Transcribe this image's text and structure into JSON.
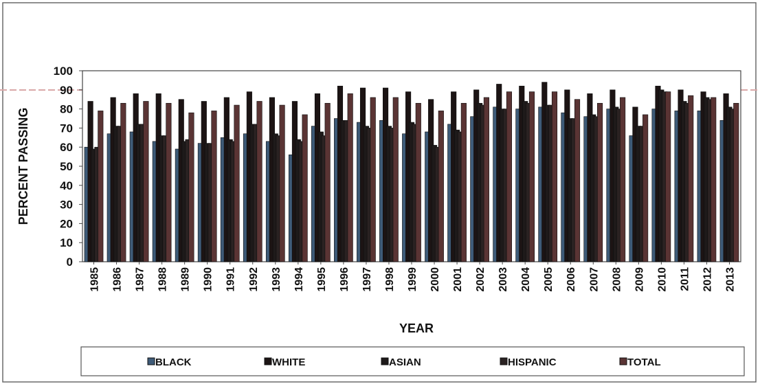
{
  "colors": {
    "BLACK": "#3e5b78",
    "WHITE": "#1c1414",
    "ASIAN": "#1e1a1a",
    "HISPANIC": "#2a2222",
    "TOTAL": "#5a3434",
    "frame": "#6a6a6a",
    "reference_line": "#d9a8a8"
  },
  "chart_data": {
    "type": "bar",
    "title": "",
    "xlabel": "YEAR",
    "ylabel": "PERCENT PASSING",
    "ylim": [
      0,
      100
    ],
    "yticks": [
      0,
      10,
      20,
      30,
      40,
      50,
      60,
      70,
      80,
      90,
      100
    ],
    "grid": false,
    "legend_position": "bottom",
    "categories": [
      "1985",
      "1986",
      "1987",
      "1988",
      "1989",
      "1990",
      "1991",
      "1992",
      "1993",
      "1994",
      "1995",
      "1996",
      "1997",
      "1998",
      "1999",
      "2000",
      "2001",
      "2002",
      "2003",
      "2004",
      "2005",
      "2006",
      "2007",
      "2008",
      "2009",
      "2010",
      "2011",
      "2012",
      "2013"
    ],
    "series": [
      {
        "name": "BLACK",
        "values": [
          60,
          67,
          68,
          63,
          59,
          62,
          65,
          67,
          63,
          56,
          71,
          75,
          73,
          74,
          67,
          68,
          72,
          76,
          81,
          80,
          81,
          78,
          76,
          80,
          66,
          80,
          79,
          79,
          74
        ]
      },
      {
        "name": "WHITE",
        "values": [
          84,
          86,
          88,
          88,
          85,
          84,
          86,
          89,
          86,
          84,
          88,
          92,
          91,
          91,
          89,
          85,
          89,
          90,
          93,
          92,
          94,
          90,
          88,
          90,
          81,
          92,
          90,
          89,
          88
        ]
      },
      {
        "name": "ASIAN",
        "values": [
          59,
          71,
          72,
          66,
          63,
          62,
          64,
          72,
          67,
          64,
          68,
          74,
          71,
          71,
          73,
          61,
          69,
          83,
          80,
          84,
          82,
          75,
          77,
          81,
          71,
          90,
          84,
          86,
          81
        ]
      },
      {
        "name": "HISPANIC",
        "values": [
          60,
          71,
          72,
          66,
          64,
          62,
          63,
          72,
          66,
          63,
          66,
          74,
          70,
          70,
          72,
          60,
          68,
          82,
          80,
          83,
          82,
          75,
          76,
          80,
          71,
          89,
          83,
          85,
          80
        ]
      },
      {
        "name": "TOTAL",
        "values": [
          79,
          83,
          84,
          83,
          78,
          79,
          82,
          84,
          82,
          77,
          83,
          88,
          86,
          86,
          83,
          79,
          83,
          86,
          89,
          89,
          89,
          85,
          83,
          86,
          77,
          89,
          87,
          86,
          83
        ]
      }
    ]
  }
}
